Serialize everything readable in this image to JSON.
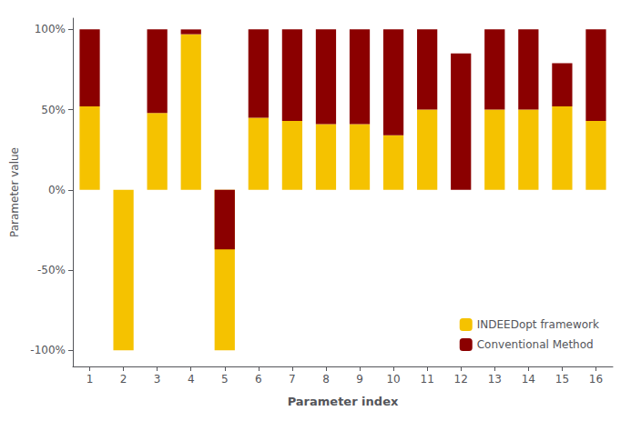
{
  "chart_data": {
    "type": "bar",
    "xlabel": "Parameter index",
    "ylabel": "Parameter value",
    "categories": [
      "1",
      "2",
      "3",
      "4",
      "5",
      "6",
      "7",
      "8",
      "9",
      "10",
      "11",
      "12",
      "13",
      "14",
      "15",
      "16"
    ],
    "series": [
      {
        "name": "INDEEDopt framework",
        "color": "#F5C200",
        "values": [
          52,
          -100,
          48,
          97,
          -100,
          45,
          43,
          41,
          41,
          34,
          50,
          0,
          50,
          50,
          52,
          43
        ]
      },
      {
        "name": "Conventional Method",
        "color": "#8B0000",
        "values": [
          48,
          0,
          52,
          3,
          -37,
          55,
          57,
          59,
          59,
          66,
          50,
          85,
          50,
          50,
          27,
          57
        ]
      }
    ],
    "stacked": true,
    "ylim": [
      -110,
      107
    ],
    "yticks": [
      {
        "value": -100,
        "label": "-100%"
      },
      {
        "value": -50,
        "label": "-50%"
      },
      {
        "value": 0,
        "label": "0%"
      },
      {
        "value": 50,
        "label": "50%"
      },
      {
        "value": 100,
        "label": "100%"
      }
    ],
    "grid": false,
    "legend": "lower right"
  }
}
